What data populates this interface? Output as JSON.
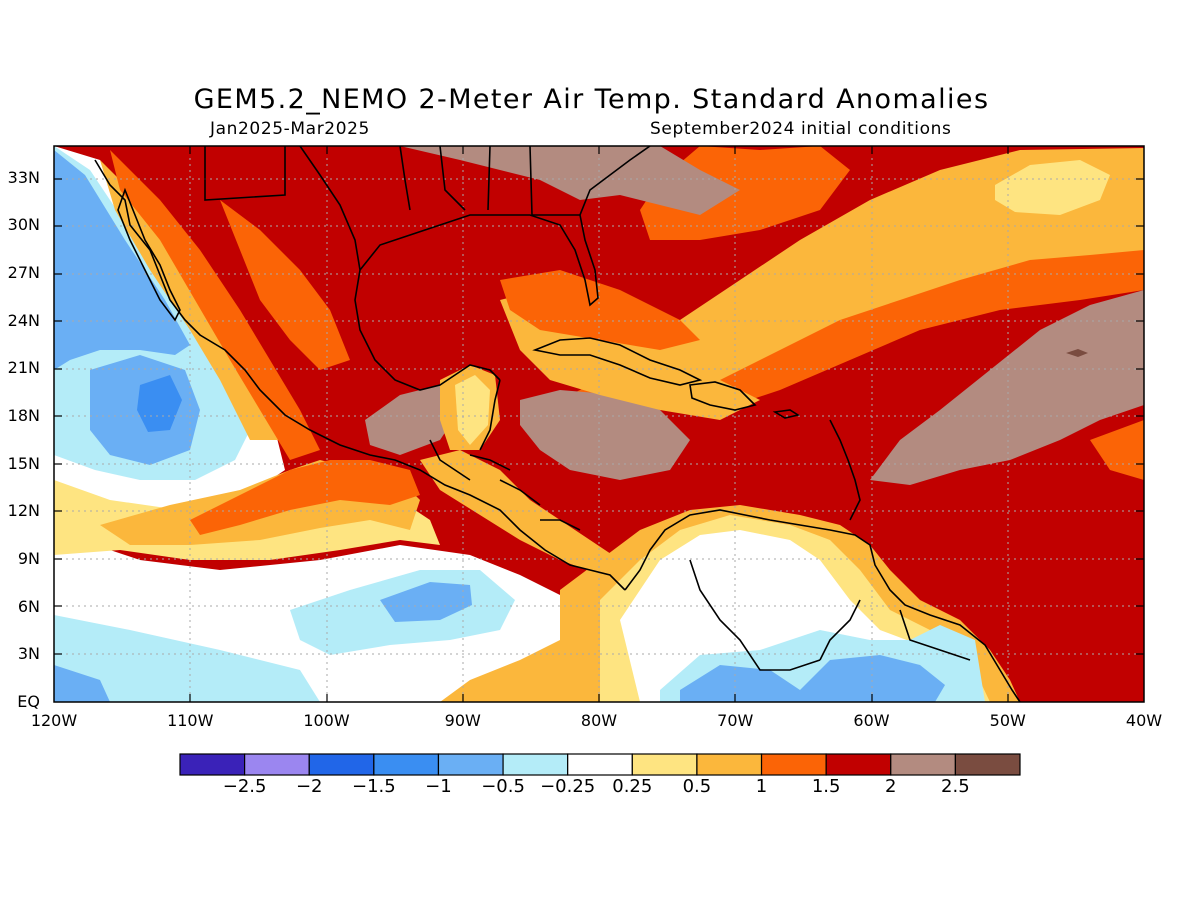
{
  "header": {
    "title": "GEM5.2_NEMO 2-Meter Air Temp. Standard Anomalies",
    "period": "Jan2025-Mar2025",
    "init": "September2024 initial conditions"
  },
  "axes": {
    "lat_labels": [
      "33N",
      "30N",
      "27N",
      "24N",
      "21N",
      "18N",
      "15N",
      "12N",
      "9N",
      "6N",
      "3N",
      "EQ"
    ],
    "lat_values": [
      33,
      30,
      27,
      24,
      21,
      18,
      15,
      12,
      9,
      6,
      3,
      0
    ],
    "lon_labels": [
      "120W",
      "110W",
      "100W",
      "90W",
      "80W",
      "70W",
      "60W",
      "50W",
      "40W"
    ],
    "lon_values": [
      -120,
      -110,
      -100,
      -90,
      -80,
      -70,
      -60,
      -50,
      -40
    ],
    "lat_range": [
      0,
      35
    ],
    "lon_range": [
      -120,
      -40
    ]
  },
  "colorbar": {
    "levels": [
      "-2.5",
      "-2",
      "-1.5",
      "-1",
      "-0.5",
      "-0.25",
      "0.25",
      "0.5",
      "1",
      "1.5",
      "2",
      "2.5"
    ],
    "colors": [
      "#3a22b8",
      "#9b86f0",
      "#2166e8",
      "#3a8ef2",
      "#6aaff4",
      "#b4ecf8",
      "#ffffff",
      "#fee481",
      "#fbb73c",
      "#fb6406",
      "#c10000",
      "#b38b80",
      "#7a4c40"
    ]
  },
  "colors": {
    "neg_strong": "#6aaff4",
    "neg_mid": "#3a8ef2",
    "neg_weak": "#b4ecf8",
    "neutral": "#ffffff",
    "pos_025": "#fee481",
    "pos_05": "#fbb73c",
    "pos_1": "#fb6406",
    "pos_15": "#c10000",
    "pos_2": "#b38b80",
    "pos_25": "#7a4c40",
    "coast": "#000000"
  }
}
